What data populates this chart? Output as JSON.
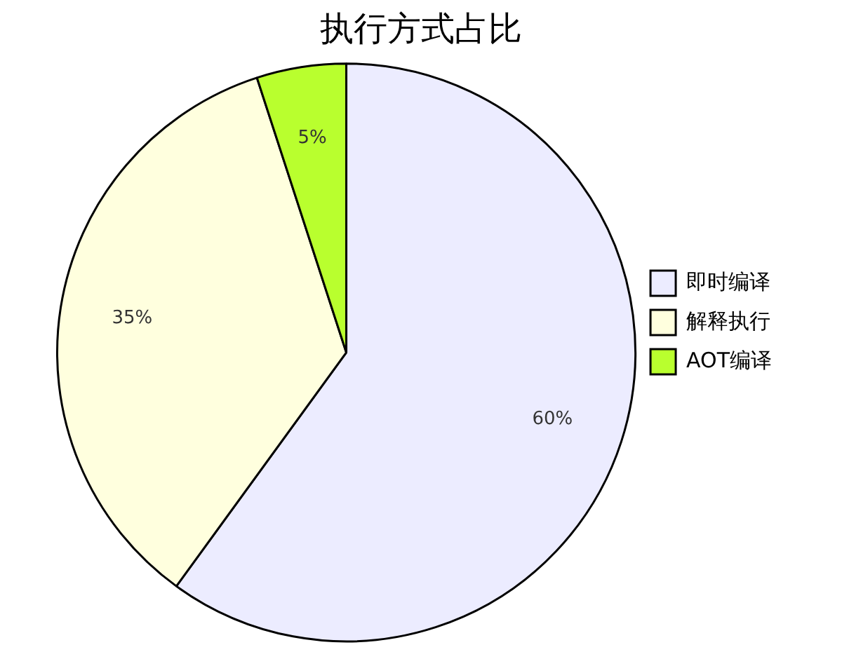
{
  "chart_data": {
    "type": "pie",
    "title": "执行方式占比",
    "categories": [
      "即时编译",
      "解释执行",
      "AOT编译"
    ],
    "values": [
      60,
      35,
      5
    ],
    "colors": [
      "#ececff",
      "#ffffde",
      "#b9ff2e"
    ],
    "value_labels": [
      "60%",
      "35%",
      "5%"
    ],
    "legend": "right"
  }
}
